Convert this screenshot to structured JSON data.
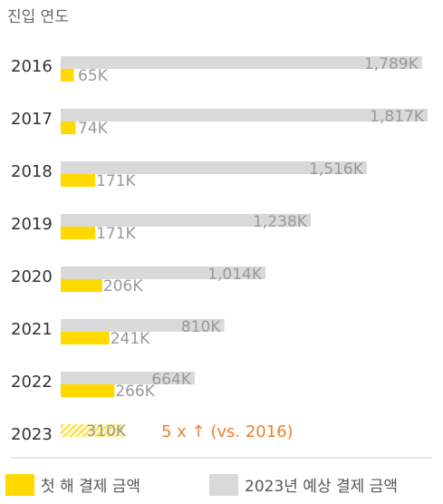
{
  "chart_data": {
    "type": "bar",
    "title": "진입 연도",
    "categories": [
      "2016",
      "2017",
      "2018",
      "2019",
      "2020",
      "2021",
      "2022",
      "2023"
    ],
    "series": [
      {
        "name": "2023년 예상 결제 금액",
        "values": [
          1789,
          1817,
          1516,
          1238,
          1014,
          810,
          664,
          null
        ],
        "labels": [
          "1,789K",
          "1,817K",
          "1,516K",
          "1,238K",
          "1,014K",
          "810K",
          "664K",
          ""
        ],
        "color": "#d9d9d9"
      },
      {
        "name": "첫 해 결제 금액",
        "values": [
          65,
          74,
          171,
          171,
          206,
          241,
          266,
          310
        ],
        "labels": [
          "65K",
          "74K",
          "171K",
          "171K",
          "206K",
          "241K",
          "266K",
          "310K"
        ],
        "color": "#ffd900",
        "hatched_last": true
      }
    ],
    "annotation": {
      "text": "5 x ↑ (vs. 2016)",
      "color": "#e8822e"
    },
    "legend_position": "bottom",
    "grid": false,
    "colors": {
      "label": "#999999",
      "year": "#333333",
      "title": "#666666",
      "divider": "#cccccc"
    }
  }
}
